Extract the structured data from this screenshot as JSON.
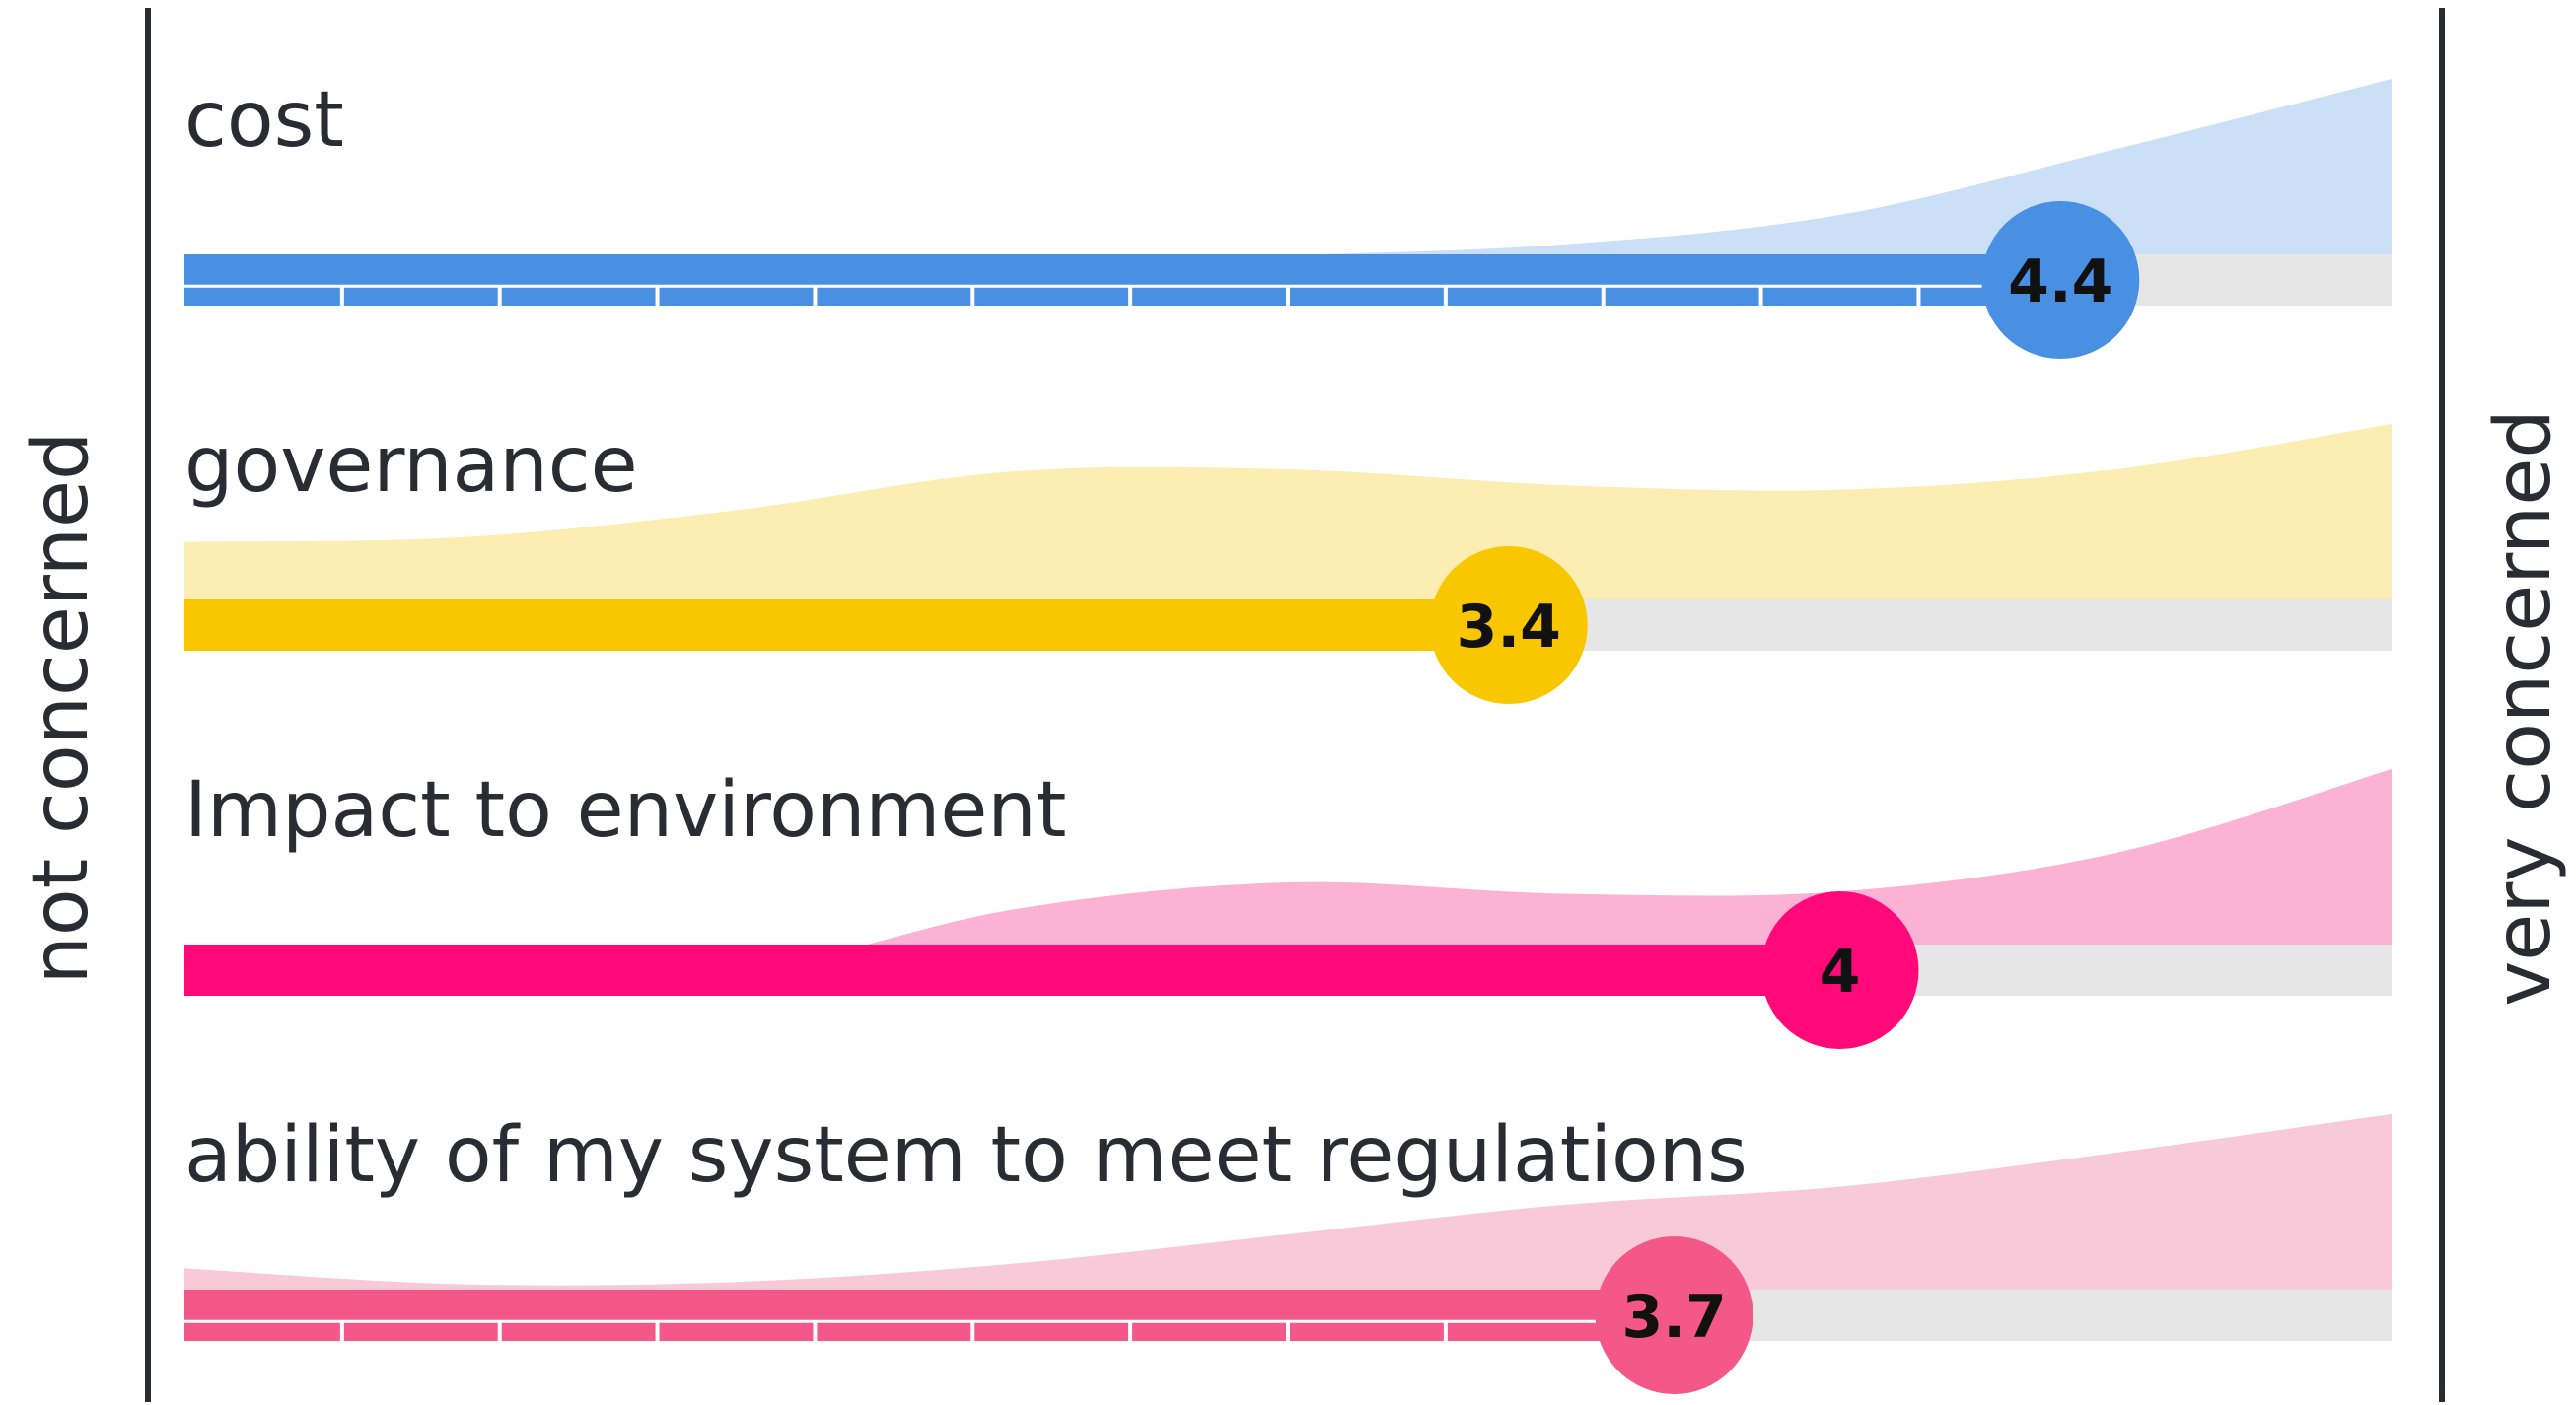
{
  "chart_data": {
    "type": "area",
    "left_label": "not concerned",
    "right_label": "very concerned",
    "xlim": [
      1,
      5
    ],
    "density_x": [
      1,
      1.5,
      2,
      2.5,
      3,
      3.5,
      4,
      4.5,
      5
    ],
    "rows": [
      {
        "label": "cost",
        "value": 4.4,
        "value_label": "4.4",
        "bar_color": "#4a90e2",
        "fill_color": "#cbdff7",
        "density": [
          0.06,
          0.06,
          0.1,
          0.17,
          0.22,
          0.27,
          0.4,
          0.69,
          1.0
        ],
        "ticks": true
      },
      {
        "label": "governance",
        "value": 3.4,
        "value_label": "3.4",
        "bar_color": "#f8c700",
        "fill_color": "#fcedb3",
        "density": [
          0.48,
          0.5,
          0.62,
          0.79,
          0.8,
          0.73,
          0.71,
          0.8,
          1.0
        ],
        "ticks": false
      },
      {
        "label": "Impact to environment",
        "value": 4.0,
        "value_label": "4",
        "bar_color": "#ff0a78",
        "fill_color": "#fbb2d5",
        "density": [
          0.15,
          0.07,
          0.1,
          0.38,
          0.5,
          0.45,
          0.46,
          0.63,
          1.0
        ],
        "ticks": false
      },
      {
        "label": "ability of my system to meet regulations",
        "value": 3.7,
        "value_label": "3.7",
        "bar_color": "#f4578a",
        "fill_color": "#f8c9d8",
        "density": [
          0.32,
          0.25,
          0.26,
          0.34,
          0.47,
          0.6,
          0.68,
          0.83,
          1.0
        ],
        "ticks": true
      }
    ],
    "track_color": "#e6e6e6",
    "axis_color": "#2b2b33"
  }
}
